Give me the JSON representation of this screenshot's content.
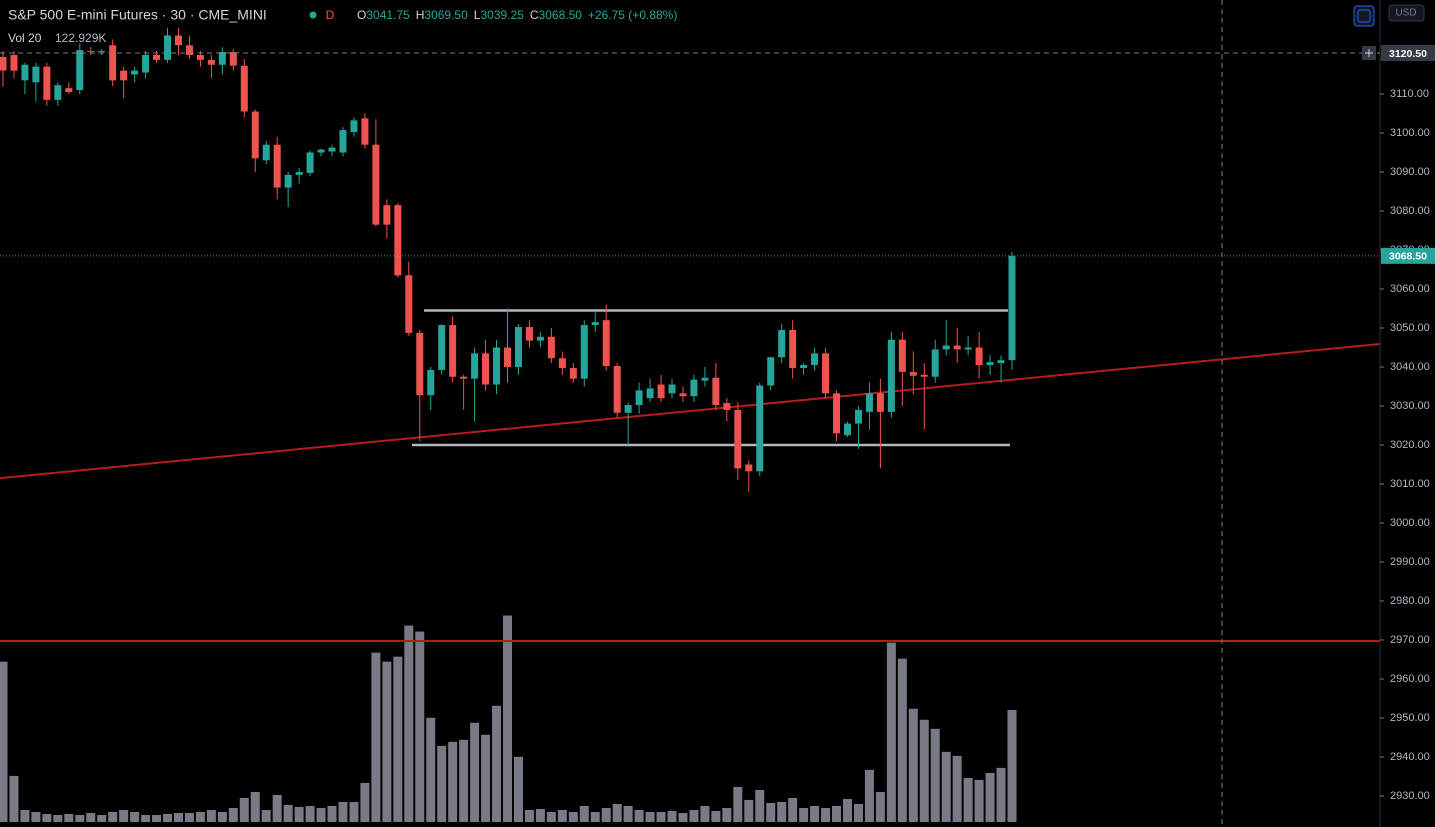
{
  "chart_data": {
    "type": "candlestick",
    "title": "S&P 500 E-mini Futures · 30 · CME_MINI",
    "interval_badge": "D",
    "ohlc_legend": [
      [
        "O",
        "3041.75"
      ],
      [
        "H",
        "3069.50"
      ],
      [
        "L",
        "3039.25"
      ],
      [
        "C",
        "3068.50"
      ]
    ],
    "change": "+26.75 (+0.88%)",
    "currency": "USD",
    "up_color": "#26a69a",
    "down_color": "#ef5350",
    "open": [
      3119.5,
      3120,
      3113.5,
      3113,
      3117,
      3108.5,
      3111.5,
      3111,
      3121,
      3120.75,
      3122.5,
      3116,
      3115,
      3115.5,
      3120,
      3118.75,
      3125,
      3122.5,
      3120,
      3118.75,
      3117.5,
      3120.75,
      3117.25,
      3105.5,
      3093,
      3097,
      3086,
      3089.25,
      3089.75,
      3095,
      3095.25,
      3095,
      3100.25,
      3103.75,
      3097,
      3081.5,
      3081.5,
      3063.5,
      3048.75,
      3032.75,
      3039.25,
      3050.75,
      3037.5,
      3037,
      3043.5,
      3035.5,
      3045,
      3040,
      3050.25,
      3046.75,
      3047.75,
      3042.25,
      3039.75,
      3037,
      3050.75,
      3052,
      3040.25,
      3028.25,
      3030.25,
      3032,
      3035.5,
      3033.25,
      3033.25,
      3032.5,
      3036.5,
      3037.25,
      3030.75,
      3029,
      3015,
      3013.25,
      3035.25,
      3042.5,
      3049.5,
      3039.75,
      3040.5,
      3043.5,
      3033.25,
      3022.5,
      3025.5,
      3028.5,
      3033.25,
      3028.5,
      3047,
      3038.75,
      3038,
      3037.5,
      3044.5,
      3045.5,
      3044.5,
      3045,
      3040.5,
      3041,
      3041.75
    ],
    "high": [
      3121,
      3121,
      3118,
      3118,
      3118,
      3113,
      3113,
      3123,
      3122,
      3121.5,
      3124,
      3117,
      3117,
      3121,
      3121,
      3127,
      3127,
      3125,
      3121,
      3120,
      3122,
      3121.5,
      3119,
      3106,
      3098,
      3099,
      3090,
      3091,
      3095.5,
      3096,
      3097,
      3101.5,
      3104,
      3105,
      3103.5,
      3083,
      3082,
      3067,
      3049.5,
      3040,
      3051,
      3053,
      3038,
      3045,
      3047,
      3047,
      3055,
      3051,
      3052,
      3049,
      3050,
      3044,
      3041,
      3052,
      3054,
      3056,
      3041,
      3031,
      3036,
      3037,
      3038,
      3037,
      3035,
      3038,
      3040,
      3041,
      3032,
      3031,
      3016,
      3036,
      3042.5,
      3051,
      3052,
      3041,
      3045,
      3045,
      3034,
      3026,
      3030,
      3036,
      3037,
      3049,
      3049,
      3044,
      3041,
      3047,
      3052,
      3050,
      3048,
      3049,
      3043,
      3043,
      3069.5
    ],
    "low": [
      3112,
      3114,
      3110,
      3108,
      3107,
      3107,
      3110,
      3110,
      3120,
      3120,
      3112,
      3109,
      3113,
      3114,
      3118,
      3118,
      3120,
      3119,
      3117,
      3114,
      3115,
      3116,
      3104,
      3090,
      3092,
      3083,
      3081,
      3087,
      3089,
      3094,
      3094,
      3094,
      3099,
      3096,
      3076,
      3073,
      3063,
      3048,
      3021,
      3029,
      3038,
      3036,
      3029,
      3026,
      3034,
      3033,
      3036,
      3038,
      3045,
      3045,
      3041,
      3038,
      3036,
      3035,
      3049,
      3039,
      3027,
      3020,
      3028,
      3031,
      3031,
      3032,
      3031,
      3031,
      3035,
      3029,
      3026,
      3011,
      3008,
      3012,
      3034,
      3041,
      3037,
      3038,
      3039,
      3032,
      3021,
      3022,
      3019,
      3024,
      3014,
      3027,
      3030,
      3033,
      3024,
      3036,
      3043,
      3041,
      3043,
      3037,
      3038,
      3036,
      3039.25
    ],
    "close": [
      3116,
      3116,
      3117.5,
      3117,
      3108.5,
      3112.25,
      3110.5,
      3121.25,
      3120.75,
      3121,
      3113.5,
      3113.5,
      3116,
      3120,
      3118.75,
      3125,
      3122.5,
      3120,
      3118.75,
      3117.5,
      3120.75,
      3117.25,
      3105.5,
      3093.5,
      3097,
      3086,
      3089.25,
      3090,
      3095,
      3095.75,
      3096.25,
      3100.75,
      3103.25,
      3097,
      3076.5,
      3076.5,
      3063.5,
      3048.75,
      3032.75,
      3039.25,
      3050.75,
      3037.5,
      3037,
      3043.5,
      3035.5,
      3045,
      3040,
      3050.25,
      3046.75,
      3047.75,
      3042.25,
      3039.75,
      3037,
      3050.75,
      3051.5,
      3040.25,
      3028.25,
      3030.25,
      3034,
      3034.5,
      3032,
      3035.5,
      3032.5,
      3036.75,
      3037.25,
      3030.25,
      3029,
      3014,
      3013.25,
      3035.25,
      3042.5,
      3049.5,
      3039.75,
      3040.5,
      3043.5,
      3033.25,
      3023,
      3025.5,
      3029,
      3033.25,
      3028.5,
      3047,
      3038.75,
      3037.75,
      3037.5,
      3044.5,
      3045.5,
      3044.5,
      3045,
      3040.5,
      3041.25,
      3041.75,
      3068.5
    ],
    "volume": {
      "name": "Vol 20",
      "color": "#787b86",
      "last_label": "122.929K",
      "values": [
        176000,
        50600,
        13200,
        11000,
        8800,
        7700,
        8800,
        7700,
        9900,
        7700,
        11000,
        13200,
        11000,
        7700,
        7700,
        8800,
        9900,
        9900,
        11000,
        13200,
        11000,
        15400,
        26400,
        33000,
        13200,
        29700,
        18700,
        16500,
        17600,
        15400,
        17600,
        22000,
        22000,
        42900,
        185900,
        176000,
        181500,
        215600,
        209000,
        114400,
        83600,
        88000,
        90200,
        108900,
        95700,
        127600,
        226600,
        71500,
        13200,
        14300,
        11000,
        13200,
        11000,
        17600,
        11000,
        15400,
        19800,
        17600,
        13200,
        11000,
        11000,
        12100,
        9900,
        13200,
        17600,
        12100,
        15400,
        38500,
        24200,
        35200,
        20900,
        22000,
        26400,
        15400,
        17600,
        15400,
        17600,
        25300,
        19800,
        57200,
        33000,
        196900,
        179300,
        124300,
        112200,
        102300,
        77000,
        72600,
        48400,
        46200,
        53900,
        59400,
        122929
      ]
    },
    "ylim": [
      2922.05,
      3134.1
    ],
    "yticks": [
      {
        "value": 2930,
        "label": "2930.00"
      },
      {
        "value": 2940,
        "label": "2940.00"
      },
      {
        "value": 2950,
        "label": "2950.00"
      },
      {
        "value": 2960,
        "label": "2960.00"
      },
      {
        "value": 2970,
        "label": "2970.00"
      },
      {
        "value": 2980,
        "label": "2980.00"
      },
      {
        "value": 2990,
        "label": "2990.00"
      },
      {
        "value": 3000,
        "label": "3000.00"
      },
      {
        "value": 3010,
        "label": "3010.00"
      },
      {
        "value": 3020,
        "label": "3020.00"
      },
      {
        "value": 3030,
        "label": "3030.00"
      },
      {
        "value": 3040,
        "label": "3040.00"
      },
      {
        "value": 3050,
        "label": "3050.00"
      },
      {
        "value": 3060,
        "label": "3060.00"
      },
      {
        "value": 3070,
        "label": "3070.00"
      },
      {
        "value": 3080,
        "label": "3080.00"
      },
      {
        "value": 3090,
        "label": "3090.00"
      },
      {
        "value": 3100,
        "label": "3100.00"
      },
      {
        "value": 3110,
        "label": "3110.00"
      }
    ],
    "grid": false,
    "drawings": [
      {
        "color": "#b2b5be",
        "values": [
          3054.5,
          3054.5
        ]
      },
      {
        "color": "#b2b5be",
        "values": [
          3020,
          3020
        ]
      },
      {
        "color": "#b71c1c",
        "values": [
          3011.5,
          3045.9
        ]
      },
      {
        "color": "#b71c1c",
        "values": [
          2969.75,
          2969.75
        ]
      }
    ],
    "last_price": {
      "value": 3068.5,
      "label": "3068.50"
    },
    "crosshair_price": {
      "value": 3120.5,
      "label": "3120.50"
    }
  }
}
